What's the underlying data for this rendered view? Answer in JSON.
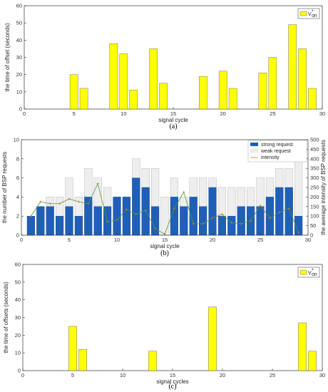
{
  "chart_data": [
    {
      "type": "bar",
      "panel_label": "(a)",
      "legend": [
        "V",
        "on",
        "*"
      ],
      "xlabel": "signal cycle",
      "ylabel": "the time of  offset (seconds)",
      "xlim": [
        0,
        30
      ],
      "ylim": [
        0,
        60
      ],
      "xticks": [
        0,
        5,
        10,
        15,
        20,
        25,
        30
      ],
      "yticks": [
        0,
        10,
        20,
        30,
        40,
        50,
        60
      ],
      "color": "#ffff00",
      "x": [
        5,
        6,
        9,
        10,
        11,
        13,
        14,
        18,
        20,
        21,
        24,
        25,
        27,
        28,
        29
      ],
      "values": [
        20,
        12,
        38,
        32,
        11,
        35,
        15,
        19,
        22,
        12,
        21,
        30,
        49,
        35,
        12
      ]
    },
    {
      "type": "bar",
      "panel_label": "(b)",
      "xlabel": "signal cycle",
      "ylabel": "the number of BSP requests",
      "ylabel_right": "the average intensity of BSP requests",
      "xlim": [
        0,
        30
      ],
      "ylim": [
        0,
        10
      ],
      "ylim_right": [
        0,
        500
      ],
      "xticks": [
        0,
        5,
        10,
        15,
        20,
        25,
        30
      ],
      "yticks": [
        0,
        2,
        4,
        6,
        8,
        10
      ],
      "yticks_right": [
        0,
        50,
        100,
        150,
        200,
        250,
        300,
        350,
        400,
        450,
        500
      ],
      "x": [
        1,
        2,
        3,
        4,
        5,
        6,
        7,
        8,
        9,
        10,
        11,
        12,
        13,
        14,
        15,
        16,
        17,
        18,
        19,
        20,
        21,
        22,
        23,
        24,
        25,
        26,
        27,
        28,
        29
      ],
      "series": [
        {
          "name": "strong request",
          "kind": "bar",
          "color": "#1f5fb8",
          "values": [
            2,
            3,
            3,
            2,
            3,
            2,
            4,
            3,
            3,
            4,
            4,
            6,
            5,
            3,
            0,
            4,
            3,
            4,
            3,
            5,
            2,
            2,
            3,
            3,
            3,
            4,
            5,
            5,
            2
          ]
        },
        {
          "name": "weak request",
          "kind": "bar",
          "color": "#eeeeee",
          "values": [
            2,
            3,
            4,
            4,
            6,
            4,
            7,
            6,
            5,
            4,
            4,
            8,
            7,
            7,
            4,
            6,
            4,
            6,
            6,
            6,
            5,
            5,
            5,
            5,
            6,
            6,
            7,
            7,
            8
          ]
        },
        {
          "name": "intensity",
          "kind": "line",
          "axis": "right",
          "color": "#e07020",
          "values": [
            100,
            175,
            165,
            165,
            190,
            175,
            165,
            270,
            70,
            80,
            135,
            110,
            130,
            35,
            5,
            140,
            225,
            60,
            60,
            90,
            110,
            65,
            60,
            75,
            155,
            90,
            120,
            140,
            15
          ]
        }
      ]
    },
    {
      "type": "bar",
      "panel_label": "(c)",
      "legend": [
        "V",
        "on",
        "*"
      ],
      "xlabel": "signal cycles",
      "ylabel": "the time of offsets (seconds)",
      "xlim": [
        0,
        30
      ],
      "ylim": [
        0,
        60
      ],
      "xticks": [
        0,
        5,
        10,
        15,
        20,
        25,
        30
      ],
      "yticks": [
        0,
        10,
        20,
        30,
        40,
        50,
        60
      ],
      "color": "#ffff00",
      "x": [
        5,
        6,
        13,
        19,
        28,
        29
      ],
      "values": [
        25,
        12,
        11,
        36,
        27,
        11
      ]
    }
  ]
}
